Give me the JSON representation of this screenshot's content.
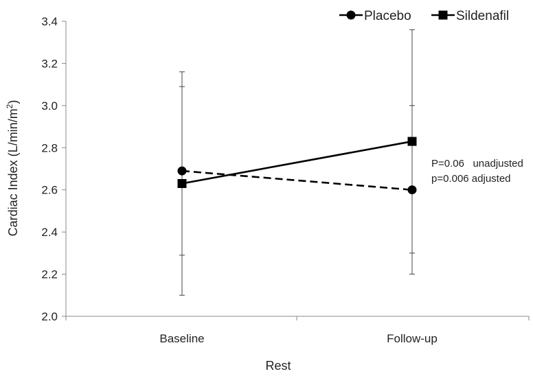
{
  "chart_data": {
    "type": "line",
    "categories": [
      "Baseline",
      "Follow-up"
    ],
    "xlabel": "Rest",
    "ylabel": "Cardiac Index (L/min/m",
    "ylabel_sup": "2",
    "ylabel_close": ")",
    "ylim": [
      2.0,
      3.4
    ],
    "yticks": [
      "2.0",
      "2.2",
      "2.4",
      "2.6",
      "2.8",
      "3.0",
      "3.2",
      "3.4"
    ],
    "legend_position": "top-right",
    "series": [
      {
        "name": "Placebo",
        "values": [
          2.69,
          2.6
        ],
        "error_low": [
          2.29,
          2.2
        ],
        "error_high": [
          3.09,
          3.0
        ],
        "marker": "circle",
        "line_style": "dashed",
        "color": "#000000"
      },
      {
        "name": "Sildenafil",
        "values": [
          2.63,
          2.83
        ],
        "error_low": [
          2.1,
          2.3
        ],
        "error_high": [
          3.16,
          3.36
        ],
        "marker": "square",
        "line_style": "solid",
        "color": "#000000"
      }
    ],
    "annotations": [
      "P=0.06   unadjusted",
      "p=0.006 adjusted"
    ],
    "grid": false
  }
}
